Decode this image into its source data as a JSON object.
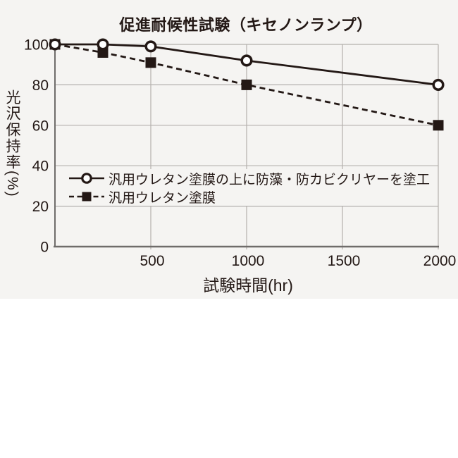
{
  "chart": {
    "panel_height_px_note": "gray chart panel occupies top band, rest of page is blank white"
  },
  "chart_data": {
    "type": "line",
    "title": "促進耐候性試験（キセノンランプ）",
    "xlabel": "試験時間(hr)",
    "ylabel": "光沢保持率(%)",
    "xlim": [
      0,
      2000
    ],
    "ylim": [
      0,
      100
    ],
    "xticks": [
      500,
      1000,
      1500,
      2000
    ],
    "yticks": [
      0,
      20,
      40,
      60,
      80,
      100
    ],
    "grid": true,
    "legend_position": "inside-left-middle",
    "x": [
      0,
      250,
      500,
      1000,
      2000
    ],
    "series": [
      {
        "name": "汎用ウレタン塗膜の上に防藻・防カビクリヤーを塗工",
        "marker": "circle",
        "marker_fill": "#ffffff",
        "line_style": "solid",
        "values": [
          100,
          100,
          99,
          92,
          80
        ]
      },
      {
        "name": "汎用ウレタン塗膜",
        "marker": "square",
        "marker_fill": "#231815",
        "line_style": "dashed",
        "values": [
          100,
          96,
          91,
          80,
          60
        ]
      }
    ],
    "colors": {
      "ink": "#231815",
      "grid": "#b3b0ad",
      "axis": "#6f6c6a",
      "panel_bg": "#f5f4f2",
      "paper_bg": "#ffffff"
    }
  }
}
